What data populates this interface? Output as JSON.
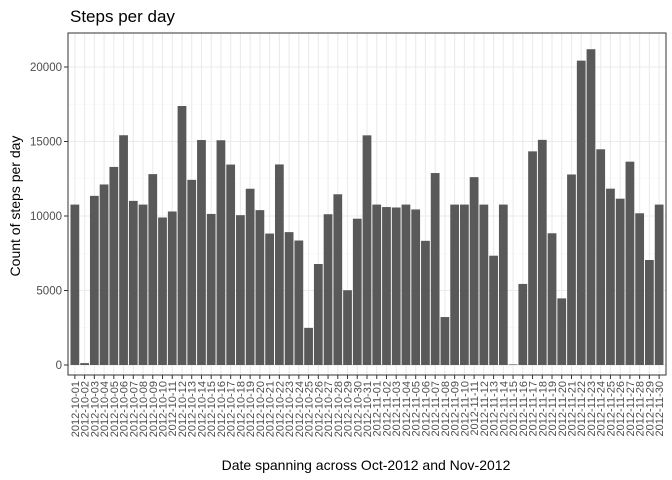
{
  "chart_data": {
    "type": "bar",
    "title": "Steps per day",
    "xlabel": "Date spanning across Oct-2012 and Nov-2012",
    "ylabel": "Count of steps per day",
    "ylim": [
      0,
      22000
    ],
    "yticks": [
      0,
      5000,
      10000,
      15000,
      20000
    ],
    "grid": true,
    "colors": {
      "bar": "#595959",
      "panel_border": "#333333",
      "grid_major": "#ebebeb",
      "grid_minor": "#f5f5f5"
    },
    "categories": [
      "2012-10-01",
      "2012-10-02",
      "2012-10-03",
      "2012-10-04",
      "2012-10-05",
      "2012-10-06",
      "2012-10-07",
      "2012-10-08",
      "2012-10-09",
      "2012-10-10",
      "2012-10-11",
      "2012-10-12",
      "2012-10-13",
      "2012-10-14",
      "2012-10-15",
      "2012-10-16",
      "2012-10-17",
      "2012-10-18",
      "2012-10-19",
      "2012-10-20",
      "2012-10-21",
      "2012-10-22",
      "2012-10-23",
      "2012-10-24",
      "2012-10-25",
      "2012-10-26",
      "2012-10-27",
      "2012-10-28",
      "2012-10-29",
      "2012-10-30",
      "2012-10-31",
      "2012-11-01",
      "2012-11-02",
      "2012-11-03",
      "2012-11-04",
      "2012-11-05",
      "2012-11-06",
      "2012-11-07",
      "2012-11-08",
      "2012-11-09",
      "2012-11-10",
      "2012-11-11",
      "2012-11-12",
      "2012-11-13",
      "2012-11-14",
      "2012-11-15",
      "2012-11-16",
      "2012-11-17",
      "2012-11-18",
      "2012-11-19",
      "2012-11-20",
      "2012-11-21",
      "2012-11-22",
      "2012-11-23",
      "2012-11-24",
      "2012-11-25",
      "2012-11-26",
      "2012-11-27",
      "2012-11-28",
      "2012-11-29",
      "2012-11-30"
    ],
    "values": [
      10766,
      126,
      11352,
      12116,
      13294,
      15420,
      11015,
      10766,
      12811,
      9900,
      10304,
      17382,
      12426,
      15098,
      10139,
      15084,
      13452,
      10056,
      11829,
      10395,
      8821,
      13460,
      8918,
      8355,
      2492,
      6778,
      10119,
      11458,
      5018,
      9819,
      15414,
      10766,
      10600,
      10571,
      10766,
      10439,
      8334,
      12883,
      3219,
      10766,
      10766,
      12608,
      10765,
      7336,
      10766,
      41,
      5441,
      14339,
      15110,
      8841,
      4472,
      12787,
      20427,
      21194,
      14478,
      11834,
      11162,
      13646,
      10183,
      7047,
      10766
    ]
  }
}
